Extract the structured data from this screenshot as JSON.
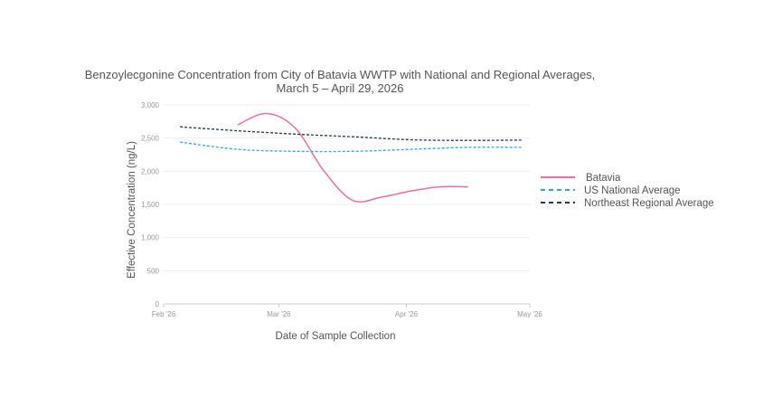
{
  "chart_data": {
    "type": "line",
    "title_line1": "Benzoylecgonine Concentration from City of Batavia WWTP with National and Regional Averages,",
    "title_line2": "March 5 – April 29, 2026",
    "xlabel": "Date of Sample Collection",
    "ylabel": "Effective Concentration (ng/L)",
    "xlim": [
      "2026-02-01",
      "2026-05-01"
    ],
    "ylim": [
      0,
      3000
    ],
    "x_ticks": [
      {
        "date": "2026-02-01",
        "label": "Feb '26"
      },
      {
        "date": "2026-03-01",
        "label": "Mar '26"
      },
      {
        "date": "2026-04-01",
        "label": "Apr '26"
      },
      {
        "date": "2026-05-01",
        "label": "May '26"
      }
    ],
    "y_ticks": [
      {
        "value": 0,
        "label": "0"
      },
      {
        "value": 500,
        "label": "500"
      },
      {
        "value": 1000,
        "label": "1,000"
      },
      {
        "value": 1500,
        "label": "1,500"
      },
      {
        "value": 2000,
        "label": "2,000"
      },
      {
        "value": 2500,
        "label": "2,500"
      },
      {
        "value": 3000,
        "label": "3,000"
      }
    ],
    "grid": true,
    "legend_position": "right",
    "series": [
      {
        "name": "Batavia",
        "color": "#f06ca6",
        "dash": "solid",
        "points": [
          {
            "x": "2026-02-19",
            "y": 2700
          },
          {
            "x": "2026-02-26",
            "y": 2870
          },
          {
            "x": "2026-03-05",
            "y": 2650
          },
          {
            "x": "2026-03-12",
            "y": 2000
          },
          {
            "x": "2026-03-19",
            "y": 1560
          },
          {
            "x": "2026-03-26",
            "y": 1610
          },
          {
            "x": "2026-04-02",
            "y": 1700
          },
          {
            "x": "2026-04-09",
            "y": 1765
          },
          {
            "x": "2026-04-16",
            "y": 1765
          }
        ]
      },
      {
        "name": "US National Average",
        "color": "#29aae1",
        "dash": "dashed",
        "points": [
          {
            "x": "2026-02-05",
            "y": 2440
          },
          {
            "x": "2026-02-19",
            "y": 2330
          },
          {
            "x": "2026-03-05",
            "y": 2300
          },
          {
            "x": "2026-03-19",
            "y": 2300
          },
          {
            "x": "2026-04-02",
            "y": 2330
          },
          {
            "x": "2026-04-16",
            "y": 2360
          },
          {
            "x": "2026-04-29",
            "y": 2360
          }
        ]
      },
      {
        "name": "Northeast Regional Average",
        "color": "#1a3a5c",
        "dash": "dashed",
        "points": [
          {
            "x": "2026-02-05",
            "y": 2670
          },
          {
            "x": "2026-02-19",
            "y": 2610
          },
          {
            "x": "2026-03-05",
            "y": 2560
          },
          {
            "x": "2026-03-19",
            "y": 2520
          },
          {
            "x": "2026-04-02",
            "y": 2475
          },
          {
            "x": "2026-04-16",
            "y": 2465
          },
          {
            "x": "2026-04-29",
            "y": 2470
          }
        ]
      }
    ]
  }
}
